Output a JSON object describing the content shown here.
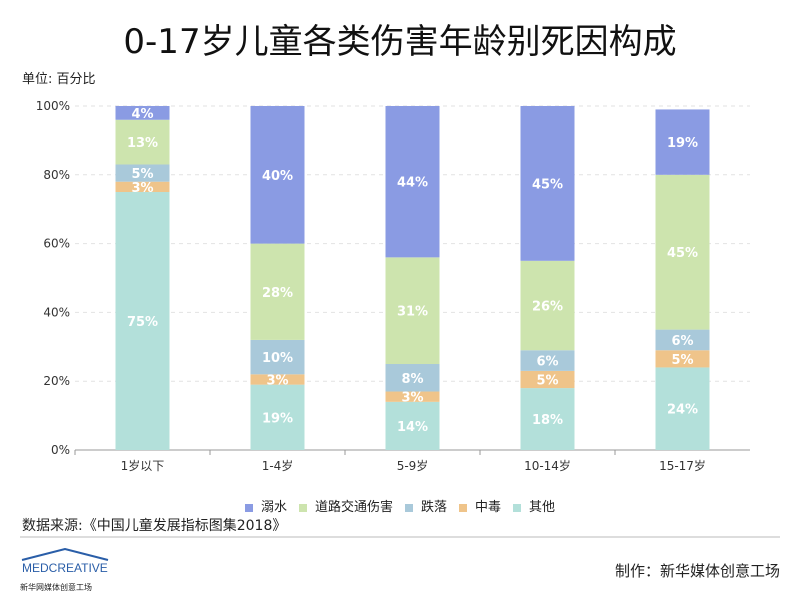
{
  "chart_data": {
    "type": "bar",
    "stacked": true,
    "title": "0-17岁儿童各类伤害年龄别死因构成",
    "unit_label": "单位: 百分比",
    "categories": [
      "1岁以下",
      "1-4岁",
      "5-9岁",
      "10-14岁",
      "15-17岁"
    ],
    "ylim": [
      0,
      100
    ],
    "yticks": [
      "0%",
      "20%",
      "40%",
      "60%",
      "80%",
      "100%"
    ],
    "series": [
      {
        "name": "其他",
        "color": "#b3e0da",
        "values": [
          75,
          19,
          14,
          18,
          24
        ]
      },
      {
        "name": "中毒",
        "color": "#efc48a",
        "values": [
          3,
          3,
          3,
          5,
          5
        ]
      },
      {
        "name": "跌落",
        "color": "#a9c9da",
        "values": [
          5,
          10,
          8,
          6,
          6
        ]
      },
      {
        "name": "道路交通伤害",
        "color": "#cde4ae",
        "values": [
          13,
          28,
          31,
          26,
          45
        ]
      },
      {
        "name": "溺水",
        "color": "#8a9be3",
        "values": [
          4,
          40,
          44,
          45,
          19
        ]
      }
    ],
    "legend_order": [
      "溺水",
      "道路交通伤害",
      "跌落",
      "中毒",
      "其他"
    ],
    "legend_placement": "bottom"
  },
  "source": "数据来源:《中国儿童发展指标图集2018》",
  "credit": "制作：新华媒体创意工场",
  "logo": {
    "text": "MEDCREATIVE",
    "sub": "新华网媒体创意工场"
  }
}
